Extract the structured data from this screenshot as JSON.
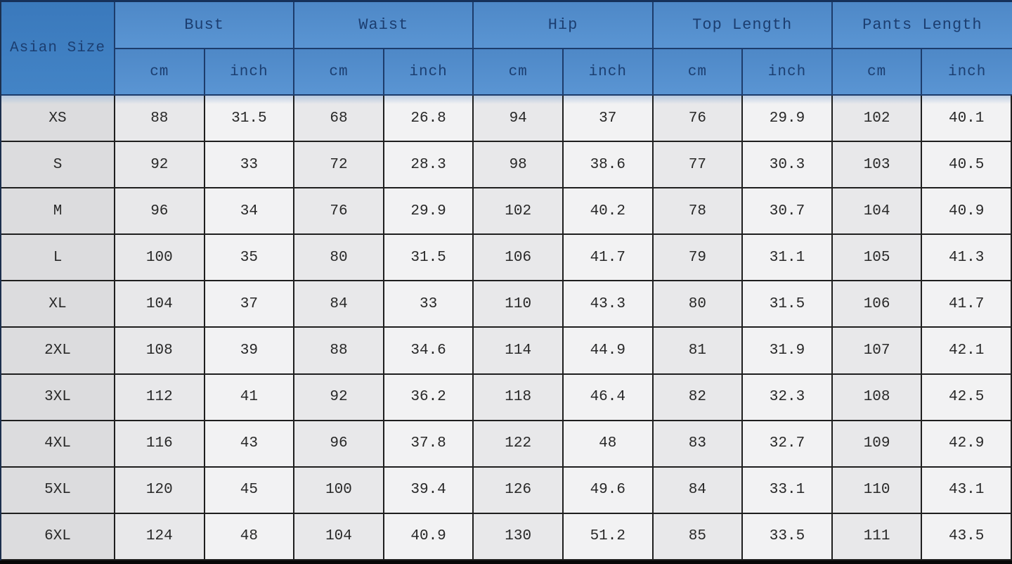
{
  "table": {
    "corner_label": "Asian Size",
    "groups": [
      {
        "label": "Bust",
        "units": [
          "cm",
          "inch"
        ]
      },
      {
        "label": "Waist",
        "units": [
          "cm",
          "inch"
        ]
      },
      {
        "label": "Hip",
        "units": [
          "cm",
          "inch"
        ]
      },
      {
        "label": "Top Length",
        "units": [
          "cm",
          "inch"
        ]
      },
      {
        "label": "Pants Length",
        "units": [
          "cm",
          "inch"
        ]
      }
    ],
    "rows": [
      {
        "size": "XS",
        "values": [
          "88",
          "31.5",
          "68",
          "26.8",
          "94",
          "37",
          "76",
          "29.9",
          "102",
          "40.1"
        ]
      },
      {
        "size": "S",
        "values": [
          "92",
          "33",
          "72",
          "28.3",
          "98",
          "38.6",
          "77",
          "30.3",
          "103",
          "40.5"
        ]
      },
      {
        "size": "M",
        "values": [
          "96",
          "34",
          "76",
          "29.9",
          "102",
          "40.2",
          "78",
          "30.7",
          "104",
          "40.9"
        ]
      },
      {
        "size": "L",
        "values": [
          "100",
          "35",
          "80",
          "31.5",
          "106",
          "41.7",
          "79",
          "31.1",
          "105",
          "41.3"
        ]
      },
      {
        "size": "XL",
        "values": [
          "104",
          "37",
          "84",
          "33",
          "110",
          "43.3",
          "80",
          "31.5",
          "106",
          "41.7"
        ]
      },
      {
        "size": "2XL",
        "values": [
          "108",
          "39",
          "88",
          "34.6",
          "114",
          "44.9",
          "81",
          "31.9",
          "107",
          "42.1"
        ]
      },
      {
        "size": "3XL",
        "values": [
          "112",
          "41",
          "92",
          "36.2",
          "118",
          "46.4",
          "82",
          "32.3",
          "108",
          "42.5"
        ]
      },
      {
        "size": "4XL",
        "values": [
          "116",
          "43",
          "96",
          "37.8",
          "122",
          "48",
          "83",
          "32.7",
          "109",
          "42.9"
        ]
      },
      {
        "size": "5XL",
        "values": [
          "120",
          "45",
          "100",
          "39.4",
          "126",
          "49.6",
          "84",
          "33.1",
          "110",
          "43.1"
        ]
      },
      {
        "size": "6XL",
        "values": [
          "124",
          "48",
          "104",
          "40.9",
          "130",
          "51.2",
          "85",
          "33.5",
          "111",
          "43.5"
        ]
      }
    ]
  },
  "colors": {
    "header_blue": "#5a95d3",
    "corner_blue": "#3d7dc0",
    "header_text_navy": "#1c3e70",
    "size_column_gray": "#dcdcde",
    "cm_column_gray": "#e8e8ea",
    "inch_column_white": "#f2f2f3",
    "bottom_bar_black": "#070707"
  },
  "chart_data": {
    "type": "table",
    "title": "Asian Size chart",
    "columns": [
      "Asian Size",
      "Bust cm",
      "Bust inch",
      "Waist cm",
      "Waist inch",
      "Hip cm",
      "Hip inch",
      "Top Length cm",
      "Top Length inch",
      "Pants Length cm",
      "Pants Length inch"
    ],
    "rows": [
      [
        "XS",
        88,
        31.5,
        68,
        26.8,
        94,
        37,
        76,
        29.9,
        102,
        40.1
      ],
      [
        "S",
        92,
        33,
        72,
        28.3,
        98,
        38.6,
        77,
        30.3,
        103,
        40.5
      ],
      [
        "M",
        96,
        34,
        76,
        29.9,
        102,
        40.2,
        78,
        30.7,
        104,
        40.9
      ],
      [
        "L",
        100,
        35,
        80,
        31.5,
        106,
        41.7,
        79,
        31.1,
        105,
        41.3
      ],
      [
        "XL",
        104,
        37,
        84,
        33,
        110,
        43.3,
        80,
        31.5,
        106,
        41.7
      ],
      [
        "2XL",
        108,
        39,
        88,
        34.6,
        114,
        44.9,
        81,
        31.9,
        107,
        42.1
      ],
      [
        "3XL",
        112,
        41,
        92,
        36.2,
        118,
        46.4,
        82,
        32.3,
        108,
        42.5
      ],
      [
        "4XL",
        116,
        43,
        96,
        37.8,
        122,
        48,
        83,
        32.7,
        109,
        42.9
      ],
      [
        "5XL",
        120,
        45,
        100,
        39.4,
        126,
        49.6,
        84,
        33.1,
        110,
        43.1
      ],
      [
        "6XL",
        124,
        48,
        104,
        40.9,
        130,
        51.2,
        85,
        33.5,
        111,
        43.5
      ]
    ]
  }
}
